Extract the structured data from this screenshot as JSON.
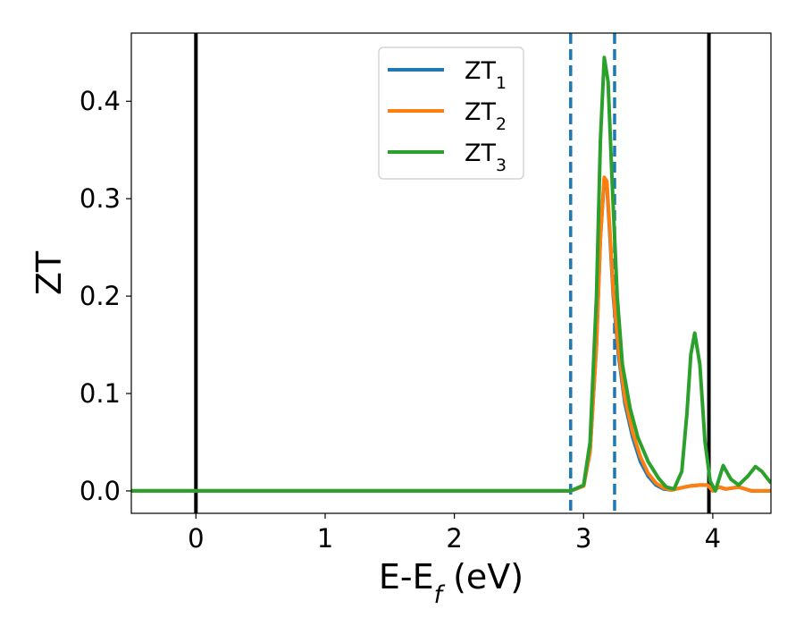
{
  "chart_data": {
    "type": "line",
    "title": "",
    "xlabel": "E-E_f (eV)",
    "ylabel": "ZT",
    "xlim": [
      -0.5,
      4.45
    ],
    "ylim": [
      -0.023,
      0.47
    ],
    "grid": false,
    "legend_position": "top-center",
    "x_ticks": [
      0,
      1,
      2,
      3,
      4
    ],
    "x_tick_labels": [
      "0",
      "1",
      "2",
      "3",
      "4"
    ],
    "y_ticks": [
      0.0,
      0.1,
      0.2,
      0.3,
      0.4
    ],
    "y_tick_labels": [
      "0.0",
      "0.1",
      "0.2",
      "0.3",
      "0.4"
    ],
    "vertical_lines": [
      {
        "x": 0.0,
        "style": "solid",
        "color": "#000000"
      },
      {
        "x": 2.9,
        "style": "dashed",
        "color": "#1f77b4"
      },
      {
        "x": 3.24,
        "style": "dashed",
        "color": "#1f77b4"
      },
      {
        "x": 3.97,
        "style": "solid",
        "color": "#000000"
      }
    ],
    "series": [
      {
        "name": "ZT_1",
        "color": "#1f77b4",
        "x": [
          -0.5,
          2.9,
          3.0,
          3.05,
          3.1,
          3.13,
          3.16,
          3.18,
          3.2,
          3.23,
          3.27,
          3.32,
          3.38,
          3.44,
          3.5,
          3.56,
          3.62,
          3.68,
          3.75,
          3.82,
          3.9,
          3.96,
          4.0,
          4.05,
          4.1,
          4.2,
          4.3,
          4.45
        ],
        "y": [
          0.0,
          0.0,
          0.005,
          0.04,
          0.15,
          0.26,
          0.32,
          0.315,
          0.27,
          0.2,
          0.14,
          0.09,
          0.055,
          0.03,
          0.015,
          0.006,
          0.002,
          0.001,
          0.003,
          0.005,
          0.006,
          0.006,
          0.0,
          0.004,
          0.002,
          0.004,
          0.0,
          0.0
        ]
      },
      {
        "name": "ZT_2",
        "color": "#ff7f0e",
        "x": [
          -0.5,
          2.9,
          3.0,
          3.05,
          3.1,
          3.13,
          3.16,
          3.18,
          3.2,
          3.23,
          3.27,
          3.32,
          3.38,
          3.44,
          3.5,
          3.56,
          3.62,
          3.68,
          3.75,
          3.82,
          3.9,
          3.96,
          4.0,
          4.05,
          4.1,
          4.2,
          4.3,
          4.45
        ],
        "y": [
          0.0,
          0.0,
          0.005,
          0.04,
          0.15,
          0.26,
          0.322,
          0.318,
          0.275,
          0.205,
          0.145,
          0.095,
          0.06,
          0.035,
          0.018,
          0.008,
          0.003,
          0.001,
          0.003,
          0.005,
          0.006,
          0.006,
          0.0,
          0.004,
          0.002,
          0.004,
          0.0,
          0.0
        ]
      },
      {
        "name": "ZT_3",
        "color": "#2ca02c",
        "x": [
          -0.5,
          2.9,
          3.0,
          3.05,
          3.1,
          3.13,
          3.16,
          3.19,
          3.22,
          3.26,
          3.3,
          3.36,
          3.42,
          3.5,
          3.58,
          3.64,
          3.7,
          3.76,
          3.8,
          3.83,
          3.86,
          3.9,
          3.94,
          3.98,
          4.02,
          4.08,
          4.14,
          4.2,
          4.27,
          4.33,
          4.38,
          4.45
        ],
        "y": [
          0.0,
          0.0,
          0.006,
          0.05,
          0.2,
          0.36,
          0.445,
          0.42,
          0.32,
          0.2,
          0.13,
          0.085,
          0.055,
          0.03,
          0.013,
          0.004,
          0.002,
          0.02,
          0.08,
          0.14,
          0.162,
          0.13,
          0.05,
          0.01,
          0.0,
          0.026,
          0.012,
          0.006,
          0.015,
          0.025,
          0.02,
          0.008
        ]
      }
    ]
  }
}
